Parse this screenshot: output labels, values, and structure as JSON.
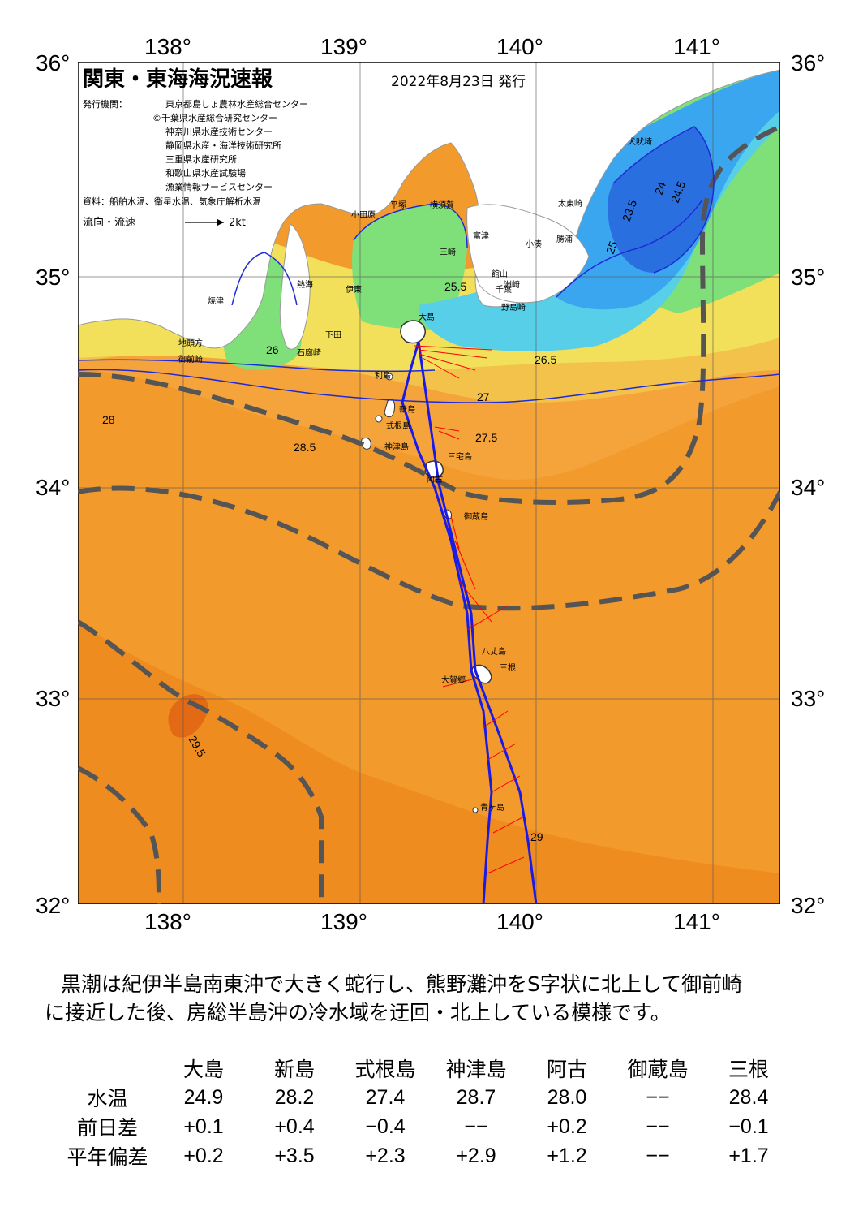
{
  "map": {
    "title": "関東・東海海況速報",
    "date": "2022年8月23日 発行",
    "issuers_label": "発行機関：",
    "issuers": [
      "東京都島しょ農林水産総合センター",
      "©千葉県水産総合研究センター",
      "神奈川県水産技術センター",
      "静岡県水産・海洋技術研究所",
      "三重県水産研究所",
      "和歌山県水産試験場",
      "漁業情報サービスセンター"
    ],
    "source": "資料：船舶水温、衛星水温、気象庁解析水温",
    "current_legend": "流向・流速",
    "current_scale": "2kt",
    "lon_labels": [
      "138°",
      "139°",
      "140°",
      "141°"
    ],
    "lat_labels": [
      "36°",
      "35°",
      "34°",
      "33°",
      "32°"
    ],
    "place_names": [
      "犬吠埼",
      "太東崎",
      "洲崎",
      "野島崎",
      "館山",
      "千葉",
      "富津",
      "横須賀",
      "平塚",
      "小田原",
      "熱海",
      "伊東",
      "下田",
      "石廊崎",
      "御前崎",
      "地頭方",
      "焼津",
      "利島",
      "新島",
      "式根島",
      "神津島",
      "三宅島",
      "阿古",
      "御蔵島",
      "八丈島",
      "三根",
      "大賀郷",
      "青ヶ島",
      "小湊",
      "勝浦",
      "大島",
      "三崎"
    ],
    "isotherm_labels": [
      "23.5",
      "24",
      "24.5",
      "25",
      "25.5",
      "26",
      "26.5",
      "27",
      "27.5",
      "28",
      "28.5",
      "29",
      "29.5"
    ],
    "colors": {
      "land": "#ffffff",
      "t_23": "#2a6fe0",
      "t_24": "#3aa6f0",
      "t_25": "#57cfe8",
      "t_26": "#7fe07a",
      "t_27": "#f2e05a",
      "t_27_5": "#f3c24a",
      "t_28": "#f4a43a",
      "t_28_5": "#f29a2c",
      "t_29": "#ef8c20",
      "t_29_5": "#e36a14",
      "kuroshio_axis": "#555555",
      "current_arrows": "#ff0000",
      "ship_track": "#1a1ae6",
      "isotherm": "#1f2bd6"
    }
  },
  "summary": [
    "黒潮は紀伊半島南東沖で大きく蛇行し、熊野灘沖をS字状に北上して御前崎",
    "に接近した後、房総半島沖の冷水域を迂回・北上している模様です。"
  ],
  "observations": {
    "stations": [
      "大島",
      "新島",
      "式根島",
      "神津島",
      "阿古",
      "御蔵島",
      "三根"
    ],
    "rows": [
      {
        "label": "水温",
        "values": [
          "24.9",
          "28.2",
          "27.4",
          "28.7",
          "28.0",
          "−−",
          "28.4"
        ]
      },
      {
        "label": "前日差",
        "values": [
          "+0.1",
          "+0.4",
          "−0.4",
          "−−",
          "+0.2",
          "−−",
          "−0.1"
        ]
      },
      {
        "label": "平年偏差",
        "values": [
          "+0.2",
          "+3.5",
          "+2.3",
          "+2.9",
          "+1.2",
          "−−",
          "+1.7"
        ]
      }
    ]
  }
}
